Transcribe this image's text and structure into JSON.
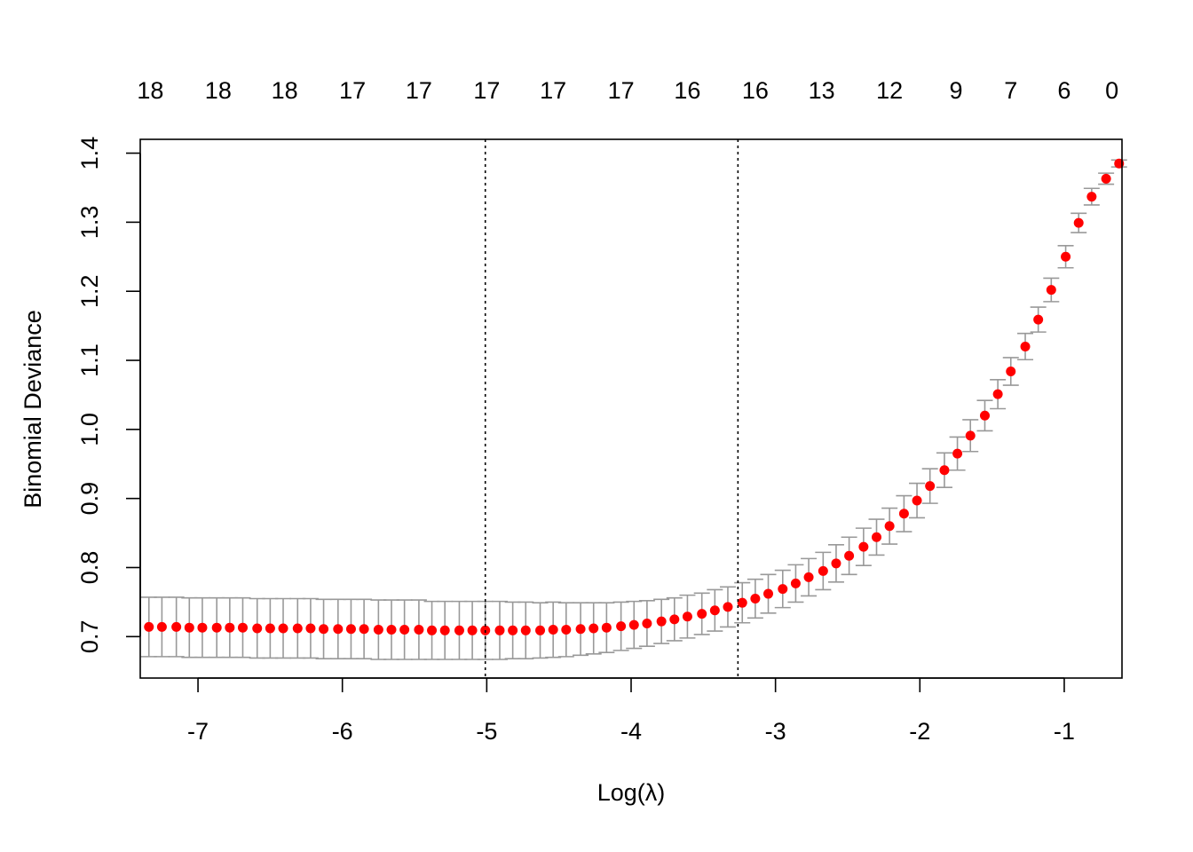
{
  "chart_data": {
    "type": "scatter",
    "xlabel": "Log(λ)",
    "ylabel": "Binomial Deviance",
    "xlim": [
      -7.4,
      -0.6
    ],
    "ylim": [
      0.64,
      1.42
    ],
    "x_ticks": [
      "-7",
      "-6",
      "-5",
      "-4",
      "-3",
      "-2",
      "-1"
    ],
    "x_tick_values": [
      -7,
      -6,
      -5,
      -4,
      -3,
      -2,
      -1
    ],
    "y_ticks": [
      "0.7",
      "0.8",
      "0.9",
      "1.0",
      "1.1",
      "1.2",
      "1.3",
      "1.4"
    ],
    "y_tick_values": [
      0.7,
      0.8,
      0.9,
      1.0,
      1.1,
      1.2,
      1.3,
      1.4
    ],
    "top_axis": {
      "labels": [
        "18",
        "18",
        "18",
        "17",
        "17",
        "17",
        "17",
        "17",
        "16",
        "16",
        "13",
        "12",
        "9",
        "7",
        "6",
        "0"
      ],
      "positions": [
        -7.33,
        -6.86,
        -6.4,
        -5.93,
        -5.47,
        -5.0,
        -4.54,
        -4.07,
        -3.61,
        -3.14,
        -2.68,
        -2.21,
        -1.75,
        -1.37,
        -1.0,
        -0.67
      ]
    },
    "vlines": [
      -5.01,
      -3.26
    ],
    "colors": {
      "point": "#ff0000",
      "errorbar": "#999999",
      "vline": "#000000"
    },
    "series": [
      {
        "x": [
          -7.34,
          -7.25,
          -7.15,
          -7.06,
          -6.97,
          -6.87,
          -6.78,
          -6.69,
          -6.59,
          -6.5,
          -6.41,
          -6.31,
          -6.22,
          -6.13,
          -6.03,
          -5.94,
          -5.85,
          -5.75,
          -5.66,
          -5.57,
          -5.47,
          -5.38,
          -5.29,
          -5.19,
          -5.1,
          -5.01,
          -4.91,
          -4.82,
          -4.73,
          -4.63,
          -4.54,
          -4.45,
          -4.35,
          -4.26,
          -4.17,
          -4.07,
          -3.98,
          -3.89,
          -3.79,
          -3.7,
          -3.61,
          -3.51,
          -3.42,
          -3.33,
          -3.23,
          -3.14,
          -3.05,
          -2.95,
          -2.86,
          -2.77,
          -2.67,
          -2.58,
          -2.49,
          -2.39,
          -2.3,
          -2.21,
          -2.11,
          -2.02,
          -1.93,
          -1.83,
          -1.74,
          -1.65,
          -1.55,
          -1.46,
          -1.37,
          -1.27,
          -1.18,
          -1.09,
          -0.99,
          -0.9,
          -0.81,
          -0.71,
          -0.62
        ],
        "y": [
          0.714,
          0.714,
          0.714,
          0.713,
          0.713,
          0.713,
          0.713,
          0.713,
          0.712,
          0.712,
          0.712,
          0.712,
          0.712,
          0.711,
          0.711,
          0.711,
          0.711,
          0.71,
          0.71,
          0.71,
          0.71,
          0.709,
          0.709,
          0.709,
          0.709,
          0.709,
          0.709,
          0.709,
          0.709,
          0.709,
          0.71,
          0.71,
          0.711,
          0.712,
          0.713,
          0.715,
          0.717,
          0.719,
          0.722,
          0.725,
          0.729,
          0.733,
          0.738,
          0.743,
          0.749,
          0.755,
          0.762,
          0.769,
          0.777,
          0.786,
          0.795,
          0.806,
          0.817,
          0.83,
          0.844,
          0.86,
          0.878,
          0.897,
          0.918,
          0.941,
          0.965,
          0.991,
          1.02,
          1.051,
          1.084,
          1.12,
          1.159,
          1.202,
          1.25,
          1.299,
          1.337,
          1.363,
          1.385
        ],
        "lower": [
          0.671,
          0.671,
          0.671,
          0.67,
          0.67,
          0.67,
          0.67,
          0.67,
          0.669,
          0.669,
          0.669,
          0.669,
          0.669,
          0.668,
          0.668,
          0.668,
          0.668,
          0.667,
          0.667,
          0.667,
          0.667,
          0.667,
          0.667,
          0.667,
          0.667,
          0.667,
          0.667,
          0.668,
          0.668,
          0.669,
          0.67,
          0.671,
          0.673,
          0.675,
          0.677,
          0.68,
          0.683,
          0.686,
          0.69,
          0.694,
          0.698,
          0.703,
          0.708,
          0.714,
          0.72,
          0.727,
          0.734,
          0.742,
          0.75,
          0.759,
          0.768,
          0.779,
          0.79,
          0.803,
          0.818,
          0.834,
          0.852,
          0.872,
          0.893,
          0.916,
          0.941,
          0.968,
          0.998,
          1.03,
          1.064,
          1.101,
          1.141,
          1.185,
          1.234,
          1.285,
          1.325,
          1.355,
          1.38
        ],
        "upper": [
          0.757,
          0.757,
          0.757,
          0.756,
          0.756,
          0.756,
          0.756,
          0.756,
          0.755,
          0.755,
          0.755,
          0.755,
          0.755,
          0.754,
          0.754,
          0.754,
          0.754,
          0.753,
          0.753,
          0.753,
          0.753,
          0.751,
          0.751,
          0.751,
          0.751,
          0.751,
          0.751,
          0.75,
          0.75,
          0.749,
          0.75,
          0.749,
          0.749,
          0.749,
          0.749,
          0.75,
          0.751,
          0.752,
          0.754,
          0.756,
          0.76,
          0.763,
          0.768,
          0.772,
          0.778,
          0.783,
          0.79,
          0.796,
          0.804,
          0.813,
          0.822,
          0.833,
          0.844,
          0.857,
          0.87,
          0.886,
          0.904,
          0.922,
          0.943,
          0.966,
          0.989,
          1.014,
          1.042,
          1.072,
          1.104,
          1.139,
          1.177,
          1.219,
          1.266,
          1.313,
          1.349,
          1.371,
          1.39
        ]
      }
    ]
  }
}
